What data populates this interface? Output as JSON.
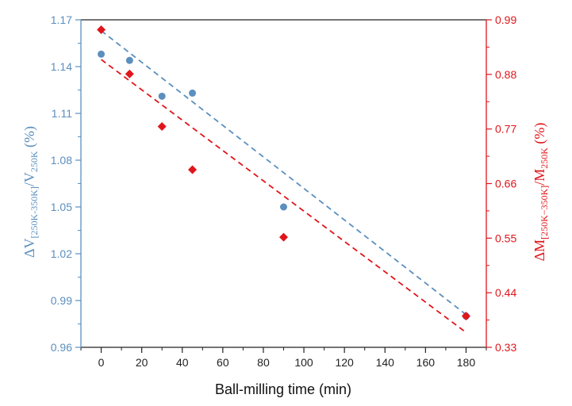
{
  "chart_data": {
    "type": "scatter",
    "x_label": "Ball-milling time (min)",
    "x_ticks": [
      "0",
      "20",
      "40",
      "60",
      "80",
      "100",
      "120",
      "140",
      "160",
      "180"
    ],
    "xlim": [
      -10,
      190
    ],
    "y_left": {
      "label_main": "ΔV",
      "label_sub": "[250K-350K]",
      "label_mid": "/V",
      "label_sub2": "250K",
      "label_tail": " (%)",
      "ylim": [
        0.96,
        1.17
      ],
      "ticks": [
        "0.96",
        "0.99",
        "1.02",
        "1.05",
        "1.08",
        "1.11",
        "1.14",
        "1.17"
      ],
      "color": "#5b8fbe"
    },
    "y_right": {
      "label_main": "ΔM",
      "label_sub": "[250K−350K]",
      "label_mid": "/M",
      "label_sub2": "250K",
      "label_tail": " (%)",
      "ylim": [
        0.33,
        0.99
      ],
      "ticks": [
        "0.33",
        "0.44",
        "0.55",
        "0.66",
        "0.77",
        "0.88",
        "0.99"
      ],
      "color": "#e0161b"
    },
    "series": [
      {
        "axis": "left",
        "marker": "circle",
        "color": "#5b8fbe",
        "x": [
          0,
          14,
          30,
          45,
          90,
          180
        ],
        "y": [
          1.148,
          1.144,
          1.121,
          1.123,
          1.05,
          0.98
        ],
        "fit": {
          "x": [
            0,
            180
          ],
          "y": [
            1.163,
            0.981
          ]
        }
      },
      {
        "axis": "right",
        "marker": "diamond",
        "color": "#e0161b",
        "x": [
          0,
          14,
          30,
          45,
          90,
          180
        ],
        "y": [
          0.97,
          0.881,
          0.775,
          0.688,
          0.552,
          0.393
        ],
        "fit": {
          "x": [
            0,
            180
          ],
          "y": [
            0.91,
            0.36
          ]
        }
      }
    ]
  }
}
